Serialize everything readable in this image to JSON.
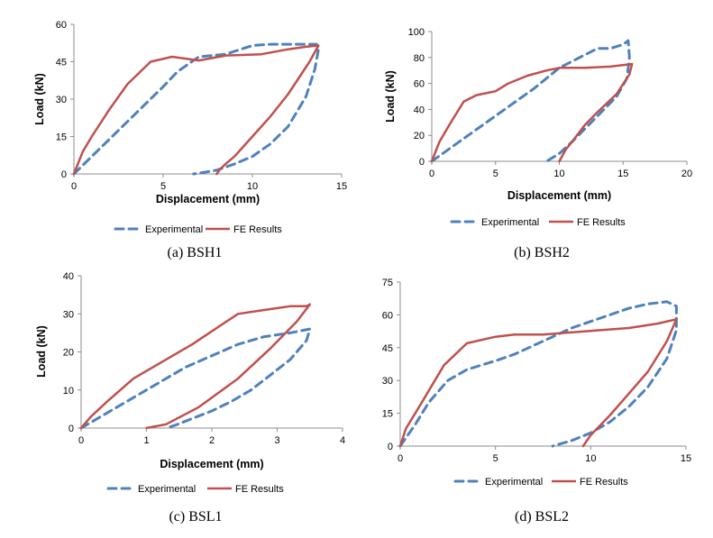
{
  "figure": {
    "panels": [
      {
        "id": "BSH1",
        "caption": "(a)   BSH1"
      },
      {
        "id": "BSH2",
        "caption": "(b)   BSH2"
      },
      {
        "id": "BSL1",
        "caption": "(c)   BSL1"
      },
      {
        "id": "BSL2",
        "caption": "(d)   BSL2"
      }
    ],
    "colors": {
      "experimental": "#4f81bd",
      "fe_results": "#c0504d",
      "axis": "#8c8c8c"
    }
  },
  "chart_data": [
    {
      "type": "line",
      "title": "",
      "xlabel": "Displacement (mm)",
      "ylabel": "Load (kN)",
      "xlim": [
        0,
        15
      ],
      "ylim": [
        0,
        60
      ],
      "xticks": [
        "0",
        "5",
        "10",
        "15"
      ],
      "yticks": [
        "0",
        "15",
        "30",
        "45",
        "60"
      ],
      "legend": [
        "Experimental",
        "FE Results"
      ],
      "series": [
        {
          "name": "Experimental",
          "style": "dashed",
          "x": [
            0,
            1,
            2,
            3,
            4,
            5,
            5.8,
            7,
            8.5,
            10,
            11,
            12,
            13,
            13.6,
            13.7,
            13.5,
            13,
            12,
            11,
            10,
            9,
            8,
            7,
            6.7
          ],
          "y": [
            0,
            7,
            14,
            21,
            28,
            35,
            41,
            47,
            48,
            51.5,
            52,
            52,
            52,
            52,
            50,
            42,
            31,
            19,
            12,
            7,
            4,
            1.5,
            0.3,
            0
          ]
        },
        {
          "name": "FE Results",
          "style": "solid",
          "x": [
            0,
            0.5,
            1,
            2,
            3,
            4.3,
            5.5,
            7,
            8.5,
            10.5,
            12,
            13,
            13.7,
            13.2,
            12,
            11,
            10,
            9,
            8.5,
            8.2,
            8
          ],
          "y": [
            0,
            9,
            15,
            26,
            36,
            45,
            47,
            45.5,
            47.5,
            48,
            50,
            51,
            51.5,
            45,
            32,
            23,
            15,
            7,
            4,
            2,
            0
          ]
        }
      ]
    },
    {
      "type": "line",
      "title": "",
      "xlabel": "Displacement (mm)",
      "ylabel": "Load (kN)",
      "xlim": [
        0,
        20
      ],
      "ylim": [
        0,
        100
      ],
      "xticks": [
        "0",
        "5",
        "10",
        "15",
        "20"
      ],
      "yticks": [
        "0",
        "20",
        "40",
        "60",
        "80",
        "100"
      ],
      "legend": [
        "Experimental",
        "FE Results"
      ],
      "series": [
        {
          "name": "Experimental",
          "style": "dashed",
          "x": [
            0,
            2,
            4,
            6,
            8,
            10,
            12,
            13,
            14,
            15,
            15.4,
            15.5,
            15.3,
            14.5,
            13,
            12,
            11,
            10,
            9
          ],
          "y": [
            0,
            14,
            28,
            42,
            56,
            72,
            82,
            87,
            87,
            90,
            93,
            80,
            64,
            50,
            35,
            25,
            15,
            6,
            0
          ]
        },
        {
          "name": "FE Results",
          "style": "solid",
          "x": [
            0,
            0.6,
            1.5,
            2.5,
            3.5,
            5,
            6,
            7.5,
            9,
            10,
            12,
            14,
            15.7,
            15.5,
            14.5,
            13,
            12,
            11,
            10.5,
            10
          ],
          "y": [
            0,
            15,
            30,
            46,
            51,
            54,
            60,
            66,
            70,
            72,
            72,
            73,
            75,
            67,
            52,
            38,
            28,
            15,
            9,
            0
          ]
        }
      ]
    },
    {
      "type": "line",
      "title": "",
      "xlabel": "Displacement (mm)",
      "ylabel": "Load (kN)",
      "xlim": [
        0,
        4
      ],
      "ylim": [
        0,
        40
      ],
      "xticks": [
        "0",
        "1",
        "2",
        "3",
        "4"
      ],
      "yticks": [
        "0",
        "10",
        "20",
        "30",
        "40"
      ],
      "legend": [
        "Experimental",
        "FE Results"
      ],
      "series": [
        {
          "name": "Experimental",
          "style": "dashed",
          "x": [
            0,
            0.4,
            0.8,
            1.2,
            1.6,
            2,
            2.4,
            2.8,
            3.2,
            3.5,
            3.45,
            3.2,
            2.9,
            2.6,
            2.3,
            2,
            1.7,
            1.45,
            1.3
          ],
          "y": [
            0,
            4,
            8,
            12,
            16,
            19,
            22,
            24,
            25,
            26,
            23,
            18,
            14,
            10,
            7,
            4.5,
            2.5,
            0.8,
            0
          ]
        },
        {
          "name": "FE Results",
          "style": "solid",
          "x": [
            0,
            0.15,
            0.4,
            0.8,
            1.2,
            1.7,
            2.4,
            2.8,
            3.2,
            3.45,
            3.5,
            3.3,
            2.9,
            2.4,
            1.8,
            1.3,
            1
          ],
          "y": [
            0,
            3,
            7,
            13,
            17,
            22,
            30,
            31,
            32,
            32,
            32.5,
            28,
            21,
            13,
            5.5,
            1,
            0
          ]
        }
      ]
    },
    {
      "type": "line",
      "title": "",
      "xlabel": "",
      "ylabel": "",
      "xlim": [
        0,
        15
      ],
      "ylim": [
        0,
        75
      ],
      "xticks": [
        "0",
        "5",
        "10",
        "15"
      ],
      "yticks": [
        "0",
        "15",
        "30",
        "45",
        "60",
        "75"
      ],
      "legend": [
        "Experimental",
        "FE Results"
      ],
      "series": [
        {
          "name": "Experimental",
          "style": "dashed",
          "x": [
            0,
            0.8,
            1.5,
            2.5,
            3.5,
            5,
            6,
            7,
            8,
            9,
            10,
            11,
            12,
            13,
            14,
            14.5,
            14.5,
            14,
            13,
            12,
            11,
            10,
            9,
            8
          ],
          "y": [
            0,
            10,
            20,
            30,
            35,
            39,
            42,
            46,
            50,
            54,
            57,
            60,
            63,
            65,
            66,
            64,
            53,
            40,
            27,
            18,
            11,
            6,
            2.5,
            0
          ]
        },
        {
          "name": "FE Results",
          "style": "solid",
          "x": [
            0,
            0.3,
            1,
            2.3,
            3.5,
            5,
            6,
            7.5,
            9,
            10.5,
            12,
            13.5,
            14.5,
            14,
            13,
            12,
            11,
            10,
            9.6
          ],
          "y": [
            0,
            8,
            18,
            37,
            47,
            50,
            51,
            51,
            52,
            53,
            54,
            56,
            58,
            48,
            34,
            24,
            14,
            5,
            0
          ]
        }
      ]
    }
  ]
}
